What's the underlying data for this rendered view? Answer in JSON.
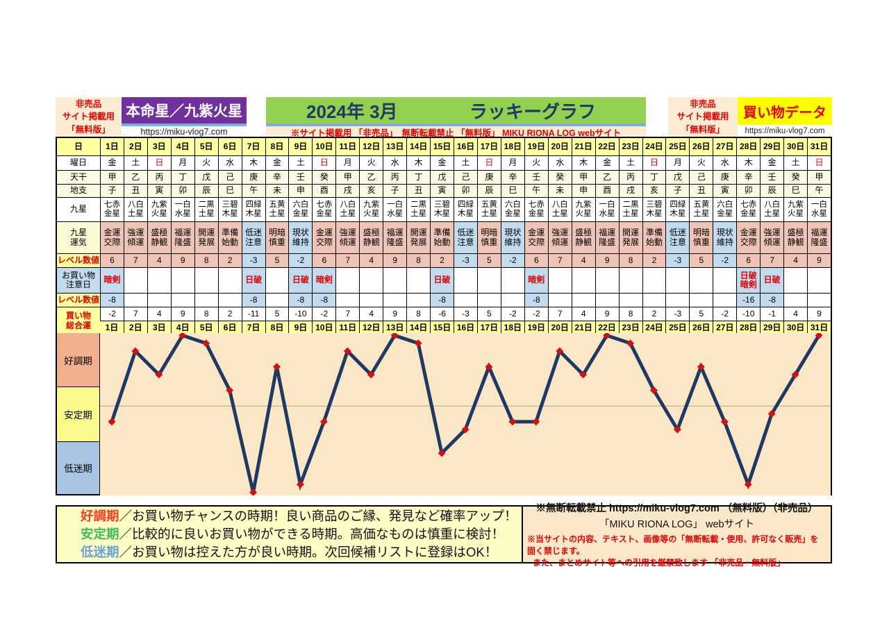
{
  "header": {
    "left_badge": {
      "line1": "非売品",
      "line2": "サイト掲載用",
      "line3": "「無料版」"
    },
    "honmeisei": {
      "title": "本命星／九紫火星",
      "url": "https://miku-vlog7.com"
    },
    "main_title": {
      "year_month": "2024年 3月",
      "title": "ラッキーグラフ",
      "notice": "※サイト掲載用 「非売品」　無断転載禁止 「無料版」 MIKU RIONA LOG  webサイト"
    },
    "right_badge": {
      "line1": "非売品",
      "line2": "サイト掲載用",
      "line3": "「無料版」"
    },
    "kaimono": {
      "title": "買い物データ",
      "url": "https://miku-vlog7.com"
    }
  },
  "table": {
    "labels": {
      "day": "日",
      "weekday": "曜日",
      "stem": "天干",
      "branch": "地支",
      "star": "九星",
      "star_fortune": "九星\n運気",
      "level": "レベル数値",
      "caution": "お買い物\n注意日",
      "caution_level": "レベル数値",
      "total": "買い物\n総合運"
    },
    "sunday_char": "日",
    "days": [
      "1日",
      "2日",
      "3日",
      "4日",
      "5日",
      "6日",
      "7日",
      "8日",
      "9日",
      "10日",
      "11日",
      "12日",
      "13日",
      "14日",
      "15日",
      "16日",
      "17日",
      "18日",
      "19日",
      "20日",
      "21日",
      "22日",
      "23日",
      "24日",
      "25日",
      "26日",
      "27日",
      "28日",
      "29日",
      "30日",
      "31日"
    ],
    "weekdays": [
      "金",
      "土",
      "日",
      "月",
      "火",
      "水",
      "木",
      "金",
      "土",
      "日",
      "月",
      "火",
      "水",
      "木",
      "金",
      "土",
      "日",
      "月",
      "火",
      "水",
      "木",
      "金",
      "土",
      "日",
      "月",
      "火",
      "水",
      "木",
      "金",
      "土",
      "日"
    ],
    "stems": [
      "甲",
      "乙",
      "丙",
      "丁",
      "戊",
      "己",
      "庚",
      "辛",
      "壬",
      "癸",
      "甲",
      "乙",
      "丙",
      "丁",
      "戊",
      "己",
      "庚",
      "辛",
      "壬",
      "癸",
      "甲",
      "乙",
      "丙",
      "丁",
      "戊",
      "己",
      "庚",
      "辛",
      "壬",
      "癸",
      "甲"
    ],
    "branches": [
      "子",
      "丑",
      "寅",
      "卯",
      "辰",
      "巳",
      "午",
      "未",
      "申",
      "酉",
      "戌",
      "亥",
      "子",
      "丑",
      "寅",
      "卯",
      "辰",
      "巳",
      "午",
      "未",
      "申",
      "酉",
      "戌",
      "亥",
      "子",
      "丑",
      "寅",
      "卯",
      "辰",
      "巳",
      "午"
    ],
    "stars": [
      "七赤金星",
      "八白土星",
      "九紫火星",
      "一白水星",
      "二黒土星",
      "三碧木星",
      "四緑木星",
      "五黄土星",
      "六白金星",
      "七赤金星",
      "八白土星",
      "九紫火星",
      "一白水星",
      "二黒土星",
      "三碧木星",
      "四緑木星",
      "五黄土星",
      "六白金星",
      "七赤金星",
      "八白土星",
      "九紫火星",
      "一白水星",
      "二黒土星",
      "三碧木星",
      "四緑木星",
      "五黄土星",
      "六白金星",
      "七赤金星",
      "八白土星",
      "九紫火星",
      "一白水星"
    ],
    "star_fortunes": [
      "金運交際",
      "強運傾運",
      "盛極静観",
      "福運隆盛",
      "開運発展",
      "準備始動",
      "低迷注意",
      "明暗慎重",
      "現状維持",
      "金運交際",
      "強運傾運",
      "盛極静観",
      "福運隆盛",
      "開運発展",
      "準備始動",
      "低迷注意",
      "明暗慎重",
      "現状維持",
      "金運交際",
      "強運傾運",
      "盛極静観",
      "福運隆盛",
      "開運発展",
      "準備始動",
      "低迷注意",
      "明暗慎重",
      "現状維持",
      "金運交際",
      "強運傾運",
      "盛極静観",
      "福運隆盛"
    ],
    "levels": [
      6,
      7,
      4,
      9,
      8,
      2,
      -3,
      5,
      -2,
      6,
      7,
      4,
      9,
      8,
      2,
      -3,
      5,
      -2,
      6,
      7,
      4,
      9,
      8,
      2,
      -3,
      5,
      -2,
      6,
      7,
      4,
      9
    ],
    "cautions": [
      "暗剣",
      "",
      "",
      "",
      "",
      "",
      "日破",
      "",
      "日破",
      "暗剣",
      "",
      "",
      "",
      "",
      "日破",
      "",
      "",
      "",
      "暗剣",
      "",
      "",
      "",
      "",
      "",
      "",
      "",
      "",
      "日破暗剣",
      "日破",
      "",
      ""
    ],
    "caution_levels": [
      -8,
      null,
      null,
      null,
      null,
      null,
      -8,
      null,
      -8,
      -8,
      null,
      null,
      null,
      null,
      -8,
      null,
      null,
      null,
      -8,
      null,
      null,
      null,
      null,
      null,
      null,
      null,
      null,
      -16,
      -8,
      null,
      null
    ],
    "totals": [
      -2,
      7,
      4,
      9,
      8,
      2,
      -11,
      5,
      -10,
      -2,
      7,
      4,
      9,
      8,
      -6,
      -3,
      5,
      -2,
      -2,
      7,
      4,
      9,
      8,
      2,
      -3,
      5,
      -2,
      -10,
      -1,
      4,
      9
    ]
  },
  "chart_data": {
    "type": "line",
    "title": "2024年 3月 ラッキーグラフ",
    "categories": [
      "1日",
      "2日",
      "3日",
      "4日",
      "5日",
      "6日",
      "7日",
      "8日",
      "9日",
      "10日",
      "11日",
      "12日",
      "13日",
      "14日",
      "15日",
      "16日",
      "17日",
      "18日",
      "19日",
      "20日",
      "21日",
      "22日",
      "23日",
      "24日",
      "25日",
      "26日",
      "27日",
      "28日",
      "29日",
      "30日",
      "31日"
    ],
    "series": [
      {
        "name": "買い物総合運",
        "values": [
          -2,
          7,
          4,
          9,
          8,
          2,
          -11,
          5,
          -10,
          -2,
          7,
          4,
          9,
          8,
          -6,
          -3,
          5,
          -2,
          -2,
          7,
          4,
          9,
          8,
          2,
          -3,
          5,
          -2,
          -10,
          -1,
          4,
          9
        ]
      }
    ],
    "ylim": [
      -11.4,
      9.3
    ],
    "gridline_y": 0,
    "zones": [
      {
        "label": "好調期",
        "range": [
          2.3,
          9.3
        ],
        "color": "#F1AF8D"
      },
      {
        "label": "安定期",
        "range": [
          -4.7,
          2.3
        ],
        "color": "#FAFA8C"
      },
      {
        "label": "低迷期",
        "range": [
          -11.4,
          -4.7
        ],
        "color": "#A8C5E4"
      }
    ],
    "line_color": "#1F3864",
    "marker_color": "#D40F0F",
    "plot_bg": "#FAE7C5",
    "gridline_color": "#B9A57E"
  },
  "legend": {
    "items": [
      {
        "term": "好調期",
        "color": "#FF3A1E",
        "desc": "／お買い物チャンスの時期！良い商品のご縁、発見など確率アップ！"
      },
      {
        "term": "安定期",
        "color": "#3DBE5A",
        "desc": "／比較的に良いお買い物ができる時期。高価なものは慎重に検討！"
      },
      {
        "term": "低迷期",
        "color": "#6AA2DC",
        "desc": "／お買い物は控えた方が良い時期。次回候補リストに登録はOK！"
      }
    ]
  },
  "footer_notice": {
    "line1": "※無断転載禁止  https://miku-vlog7.com （無料版）（非売品）",
    "line2": "「MIKU RIONA LOG」 webサイト",
    "line3": "※当サイトの内容、テキスト、画像等の「無断転載・使用、許可なく販売」を固く禁じます。",
    "line4": "また、まとめサイト等への引用を厳禁致します 「非売品・無料版」"
  }
}
